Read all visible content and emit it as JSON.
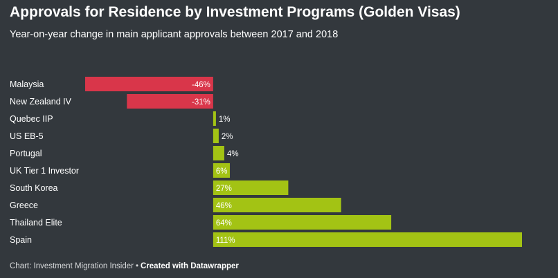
{
  "chart_data": {
    "type": "bar",
    "orientation": "horizontal",
    "title": "Approvals for Residence by Investment Programs (Golden Visas)",
    "subtitle": "Year-on-year change in main applicant approvals between 2017 and 2018",
    "categories": [
      "Malaysia",
      "New Zealand IV",
      "Quebec IIP",
      "US EB-5",
      "Portugal",
      "UK Tier 1 Investor",
      "South Korea",
      "Greece",
      "Thailand Elite",
      "Spain"
    ],
    "values": [
      -46,
      -31,
      1,
      2,
      4,
      6,
      27,
      46,
      64,
      111
    ],
    "value_labels": [
      "-46%",
      "-31%",
      "1%",
      "2%",
      "4%",
      "6%",
      "27%",
      "46%",
      "64%",
      "111%"
    ],
    "value_unit": "%",
    "xlim": [
      -46,
      111
    ],
    "xlabel": "",
    "ylabel": "",
    "grid": false,
    "colors": {
      "negative": "#d9364a",
      "positive": "#a3c314",
      "background": "#33383d",
      "text": "#ffffff"
    }
  },
  "footer": {
    "source": "Chart: Investment Migration Insider",
    "separator": "•",
    "credit": "Created with Datawrapper"
  }
}
